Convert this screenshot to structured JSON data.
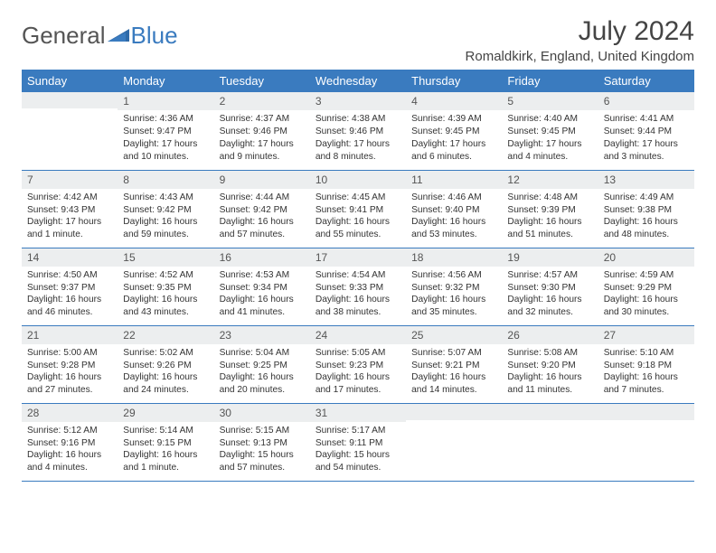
{
  "brand": {
    "general": "General",
    "blue": "Blue"
  },
  "title": "July 2024",
  "location": "Romaldkirk, England, United Kingdom",
  "accent_color": "#3a7bbf",
  "header_bg": "#eceeef",
  "weekdays": [
    "Sunday",
    "Monday",
    "Tuesday",
    "Wednesday",
    "Thursday",
    "Friday",
    "Saturday"
  ],
  "weeks": [
    [
      {
        "n": "",
        "sr": "",
        "ss": "",
        "dl": ""
      },
      {
        "n": "1",
        "sr": "Sunrise: 4:36 AM",
        "ss": "Sunset: 9:47 PM",
        "dl": "Daylight: 17 hours and 10 minutes."
      },
      {
        "n": "2",
        "sr": "Sunrise: 4:37 AM",
        "ss": "Sunset: 9:46 PM",
        "dl": "Daylight: 17 hours and 9 minutes."
      },
      {
        "n": "3",
        "sr": "Sunrise: 4:38 AM",
        "ss": "Sunset: 9:46 PM",
        "dl": "Daylight: 17 hours and 8 minutes."
      },
      {
        "n": "4",
        "sr": "Sunrise: 4:39 AM",
        "ss": "Sunset: 9:45 PM",
        "dl": "Daylight: 17 hours and 6 minutes."
      },
      {
        "n": "5",
        "sr": "Sunrise: 4:40 AM",
        "ss": "Sunset: 9:45 PM",
        "dl": "Daylight: 17 hours and 4 minutes."
      },
      {
        "n": "6",
        "sr": "Sunrise: 4:41 AM",
        "ss": "Sunset: 9:44 PM",
        "dl": "Daylight: 17 hours and 3 minutes."
      }
    ],
    [
      {
        "n": "7",
        "sr": "Sunrise: 4:42 AM",
        "ss": "Sunset: 9:43 PM",
        "dl": "Daylight: 17 hours and 1 minute."
      },
      {
        "n": "8",
        "sr": "Sunrise: 4:43 AM",
        "ss": "Sunset: 9:42 PM",
        "dl": "Daylight: 16 hours and 59 minutes."
      },
      {
        "n": "9",
        "sr": "Sunrise: 4:44 AM",
        "ss": "Sunset: 9:42 PM",
        "dl": "Daylight: 16 hours and 57 minutes."
      },
      {
        "n": "10",
        "sr": "Sunrise: 4:45 AM",
        "ss": "Sunset: 9:41 PM",
        "dl": "Daylight: 16 hours and 55 minutes."
      },
      {
        "n": "11",
        "sr": "Sunrise: 4:46 AM",
        "ss": "Sunset: 9:40 PM",
        "dl": "Daylight: 16 hours and 53 minutes."
      },
      {
        "n": "12",
        "sr": "Sunrise: 4:48 AM",
        "ss": "Sunset: 9:39 PM",
        "dl": "Daylight: 16 hours and 51 minutes."
      },
      {
        "n": "13",
        "sr": "Sunrise: 4:49 AM",
        "ss": "Sunset: 9:38 PM",
        "dl": "Daylight: 16 hours and 48 minutes."
      }
    ],
    [
      {
        "n": "14",
        "sr": "Sunrise: 4:50 AM",
        "ss": "Sunset: 9:37 PM",
        "dl": "Daylight: 16 hours and 46 minutes."
      },
      {
        "n": "15",
        "sr": "Sunrise: 4:52 AM",
        "ss": "Sunset: 9:35 PM",
        "dl": "Daylight: 16 hours and 43 minutes."
      },
      {
        "n": "16",
        "sr": "Sunrise: 4:53 AM",
        "ss": "Sunset: 9:34 PM",
        "dl": "Daylight: 16 hours and 41 minutes."
      },
      {
        "n": "17",
        "sr": "Sunrise: 4:54 AM",
        "ss": "Sunset: 9:33 PM",
        "dl": "Daylight: 16 hours and 38 minutes."
      },
      {
        "n": "18",
        "sr": "Sunrise: 4:56 AM",
        "ss": "Sunset: 9:32 PM",
        "dl": "Daylight: 16 hours and 35 minutes."
      },
      {
        "n": "19",
        "sr": "Sunrise: 4:57 AM",
        "ss": "Sunset: 9:30 PM",
        "dl": "Daylight: 16 hours and 32 minutes."
      },
      {
        "n": "20",
        "sr": "Sunrise: 4:59 AM",
        "ss": "Sunset: 9:29 PM",
        "dl": "Daylight: 16 hours and 30 minutes."
      }
    ],
    [
      {
        "n": "21",
        "sr": "Sunrise: 5:00 AM",
        "ss": "Sunset: 9:28 PM",
        "dl": "Daylight: 16 hours and 27 minutes."
      },
      {
        "n": "22",
        "sr": "Sunrise: 5:02 AM",
        "ss": "Sunset: 9:26 PM",
        "dl": "Daylight: 16 hours and 24 minutes."
      },
      {
        "n": "23",
        "sr": "Sunrise: 5:04 AM",
        "ss": "Sunset: 9:25 PM",
        "dl": "Daylight: 16 hours and 20 minutes."
      },
      {
        "n": "24",
        "sr": "Sunrise: 5:05 AM",
        "ss": "Sunset: 9:23 PM",
        "dl": "Daylight: 16 hours and 17 minutes."
      },
      {
        "n": "25",
        "sr": "Sunrise: 5:07 AM",
        "ss": "Sunset: 9:21 PM",
        "dl": "Daylight: 16 hours and 14 minutes."
      },
      {
        "n": "26",
        "sr": "Sunrise: 5:08 AM",
        "ss": "Sunset: 9:20 PM",
        "dl": "Daylight: 16 hours and 11 minutes."
      },
      {
        "n": "27",
        "sr": "Sunrise: 5:10 AM",
        "ss": "Sunset: 9:18 PM",
        "dl": "Daylight: 16 hours and 7 minutes."
      }
    ],
    [
      {
        "n": "28",
        "sr": "Sunrise: 5:12 AM",
        "ss": "Sunset: 9:16 PM",
        "dl": "Daylight: 16 hours and 4 minutes."
      },
      {
        "n": "29",
        "sr": "Sunrise: 5:14 AM",
        "ss": "Sunset: 9:15 PM",
        "dl": "Daylight: 16 hours and 1 minute."
      },
      {
        "n": "30",
        "sr": "Sunrise: 5:15 AM",
        "ss": "Sunset: 9:13 PM",
        "dl": "Daylight: 15 hours and 57 minutes."
      },
      {
        "n": "31",
        "sr": "Sunrise: 5:17 AM",
        "ss": "Sunset: 9:11 PM",
        "dl": "Daylight: 15 hours and 54 minutes."
      },
      {
        "n": "",
        "sr": "",
        "ss": "",
        "dl": ""
      },
      {
        "n": "",
        "sr": "",
        "ss": "",
        "dl": ""
      },
      {
        "n": "",
        "sr": "",
        "ss": "",
        "dl": ""
      }
    ]
  ]
}
